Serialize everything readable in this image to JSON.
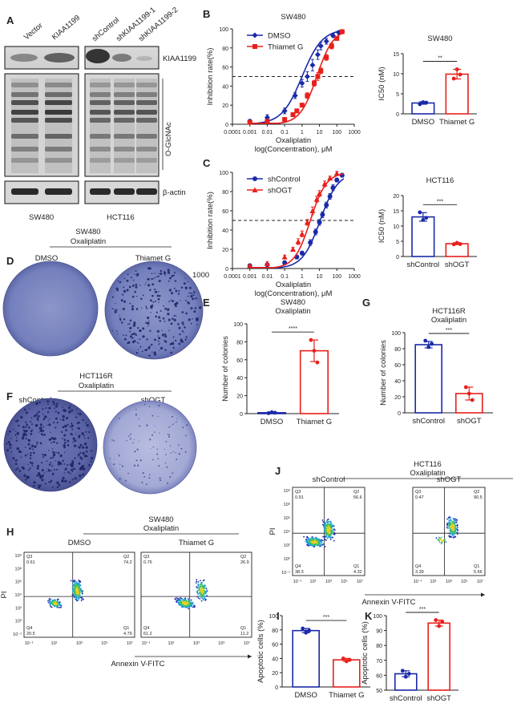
{
  "colors": {
    "blue": "#1a2aa8",
    "red": "#e8201c",
    "gray": "#555555"
  },
  "panel_labels": [
    "A",
    "B",
    "C",
    "D",
    "E",
    "F",
    "G",
    "H",
    "I",
    "J",
    "K"
  ],
  "panelA": {
    "lanes_left": [
      "Vector",
      "KIAA1199"
    ],
    "lanes_right": [
      "shControl",
      "shKIAA1199-1",
      "shKIAA1199-2"
    ],
    "blots": [
      "KIAA1199",
      "O-GlcNAc",
      "β-actin"
    ],
    "cells": [
      "SW480",
      "HCT116"
    ]
  },
  "panelD": {
    "title1": "SW480",
    "title2": "Oxaliplatin",
    "labels": [
      "DMSO",
      "Thiamet G"
    ],
    "aside": "1000"
  },
  "panelF": {
    "title1": "HCT116R",
    "title2": "Oxaliplatin",
    "labels": [
      "shControl",
      "shOGT"
    ]
  },
  "panelH": {
    "title1": "SW480",
    "title2": "Oxaliplatin",
    "labels": [
      "DMSO",
      "Thiamet G"
    ],
    "xaxis": "Annexin V-FITC",
    "yaxis": "PI",
    "plots": [
      {
        "q3": "Q3",
        "q3v": "0.61",
        "q2": "Q2",
        "q2v": "74.2",
        "q4": "Q4",
        "q4v": "20.5",
        "q1": "Q1",
        "q1v": "4.79"
      },
      {
        "q3": "Q3",
        "q3v": "0.76",
        "q2": "Q2",
        "q2v": "26.9",
        "q4": "Q4",
        "q4v": "61.2",
        "q1": "Q1",
        "q1v": "11.2"
      }
    ],
    "xticks": [
      "10⁻¹",
      "10¹",
      "10³",
      "10⁵",
      "10⁷"
    ],
    "yticks": [
      "10⁹",
      "10⁸",
      "10⁶",
      "10⁴",
      "10²",
      "10⁰",
      "10⁻¹"
    ]
  },
  "panelJ": {
    "title1": "HCT116",
    "title2": "Oxaliplatin",
    "labels": [
      "shControl",
      "shOGT"
    ],
    "xaxis": "Annexin V-FITC",
    "yaxis": "PI",
    "plots": [
      {
        "q3": "Q3",
        "q3v": "0.91",
        "q2": "Q2",
        "q2v": "56.6",
        "q4": "Q4",
        "q4v": "38.3",
        "q1": "Q1",
        "q1v": "4.32"
      },
      {
        "q3": "Q3",
        "q3v": "0.47",
        "q2": "Q2",
        "q2v": "90.5",
        "q4": "Q4",
        "q4v": "3.39",
        "q1": "Q1",
        "q1v": "5.66"
      }
    ],
    "xticks": [
      "10⁻¹",
      "10¹",
      "10³",
      "10⁵",
      "10⁷"
    ],
    "yticks": [
      "10⁹",
      "10⁸",
      "10⁶",
      "10⁴",
      "10²",
      "10⁰",
      "10⁻¹"
    ]
  },
  "chart_data": [
    {
      "id": "B_curve",
      "type": "line",
      "title": "SW480",
      "xlabel": "Oxaliplatin\nlog(Concentration), μM",
      "ylabel": "Inhibition rate(%)",
      "xscale": "log",
      "xlim": [
        0.0001,
        1000
      ],
      "ylim": [
        0,
        100
      ],
      "xtick_labels": [
        "0.0001",
        "0.001",
        "0.01",
        "0.1",
        "1",
        "10",
        "100",
        "1000"
      ],
      "ytick_labels": [
        "0",
        "20",
        "40",
        "60",
        "80",
        "100"
      ],
      "reference_line": 50,
      "series": [
        {
          "name": "DMSO",
          "color": "#1a2aa8",
          "marker": "diamond",
          "ec50": 1.0,
          "hill": 0.75,
          "x": [
            0.001,
            0.01,
            0.1,
            0.4,
            1,
            2,
            4,
            8,
            12,
            25,
            60,
            130,
            200
          ],
          "y": [
            3,
            7,
            14,
            30,
            43,
            50,
            62,
            73,
            82,
            87,
            93,
            96,
            97
          ],
          "err": [
            2,
            3,
            3,
            3,
            4,
            5,
            6,
            5,
            4,
            3,
            2,
            2,
            2
          ]
        },
        {
          "name": "Thiamet G",
          "color": "#e8201c",
          "marker": "square",
          "ec50": 7.0,
          "hill": 0.9,
          "x": [
            0.001,
            0.01,
            0.1,
            0.3,
            0.5,
            1,
            2,
            5,
            8,
            12,
            25,
            50,
            100,
            200
          ],
          "y": [
            2,
            3,
            5,
            10,
            14,
            20,
            30,
            43,
            50,
            56,
            70,
            82,
            90,
            97
          ],
          "err": [
            1,
            1,
            2,
            2,
            2,
            2,
            3,
            3,
            4,
            3,
            3,
            3,
            2,
            2
          ]
        }
      ]
    },
    {
      "id": "B_ic50",
      "type": "bar",
      "title": "SW480",
      "ylabel": "IC50 (nM)",
      "categories": [
        "DMSO",
        "Thiamet G"
      ],
      "values": [
        2.7,
        9.9
      ],
      "points": [
        [
          2.4,
          2.9,
          2.8
        ],
        [
          8.8,
          11.1,
          9.8
        ]
      ],
      "err": [
        0.3,
        1.2
      ],
      "ylim": [
        0,
        15
      ],
      "ytick_labels": [
        "0",
        "5",
        "10",
        "15"
      ],
      "significance": "**"
    },
    {
      "id": "C_curve",
      "type": "line",
      "title": "",
      "xlabel": "Oxaliplatin\nlog(Concentration), μM",
      "ylabel": "Inhibition rate(%)",
      "xscale": "log",
      "xlim": [
        0.0001,
        1000
      ],
      "ylim": [
        0,
        100
      ],
      "xtick_labels": [
        "0.0001",
        "0.001",
        "0.01",
        "0.1",
        "1",
        "10",
        "100",
        "1000"
      ],
      "ytick_labels": [
        "0",
        "20",
        "40",
        "60",
        "80",
        "100"
      ],
      "reference_line": 50,
      "series": [
        {
          "name": "shControl",
          "color": "#1a2aa8",
          "marker": "circle",
          "ec50": 11.0,
          "hill": 0.85,
          "x": [
            0.001,
            0.01,
            0.1,
            0.5,
            1,
            3,
            6,
            10,
            15,
            25,
            40,
            60,
            100,
            200
          ],
          "y": [
            3,
            4,
            6,
            12,
            16,
            27,
            38,
            48,
            56,
            66,
            75,
            84,
            92,
            97
          ],
          "err": [
            1,
            1,
            2,
            2,
            2,
            3,
            3,
            3,
            3,
            3,
            3,
            3,
            2,
            2
          ]
        },
        {
          "name": "shOGT",
          "color": "#e8201c",
          "marker": "triangle",
          "ec50": 3.0,
          "hill": 0.95,
          "x": [
            0.001,
            0.01,
            0.1,
            0.3,
            0.6,
            1,
            2,
            4,
            7,
            10,
            20,
            40,
            100
          ],
          "y": [
            3,
            5,
            12,
            20,
            28,
            36,
            48,
            60,
            72,
            78,
            88,
            94,
            99
          ],
          "err": [
            1,
            2,
            2,
            2,
            3,
            3,
            3,
            4,
            3,
            3,
            3,
            2,
            2
          ]
        }
      ]
    },
    {
      "id": "C_ic50",
      "type": "bar",
      "title": "HCT116",
      "ylabel": "IC50 (nM)",
      "categories": [
        "shControl",
        "shOGT"
      ],
      "values": [
        13.0,
        4.2
      ],
      "points": [
        [
          14.5,
          12.0,
          12.7
        ],
        [
          4.0,
          4.5,
          4.1
        ]
      ],
      "err": [
        1.4,
        0.3
      ],
      "ylim": [
        0,
        20
      ],
      "ytick_labels": [
        "0",
        "5",
        "10",
        "15",
        "20"
      ],
      "significance": "***"
    },
    {
      "id": "E",
      "type": "bar",
      "title": "SW480\nOxaliplatin",
      "ylabel": "Number of colonies",
      "categories": [
        "DMSO",
        "Thiamet G"
      ],
      "values": [
        1,
        70
      ],
      "points": [
        [
          0.5,
          1.5,
          1
        ],
        [
          82,
          70,
          57
        ]
      ],
      "err": [
        0.6,
        12
      ],
      "ylim": [
        0,
        100
      ],
      "ytick_labels": [
        "0",
        "20",
        "40",
        "60",
        "80",
        "100"
      ],
      "significance": "****"
    },
    {
      "id": "G",
      "type": "bar",
      "title": "HCT116R\nOxaliplatin",
      "ylabel": "Number of colonies",
      "categories": [
        "shControl",
        "shOGT"
      ],
      "values": [
        85,
        24
      ],
      "points": [
        [
          90,
          82,
          86
        ],
        [
          32,
          24,
          16
        ]
      ],
      "err": [
        4,
        8
      ],
      "ylim": [
        0,
        100
      ],
      "ytick_labels": [
        "0",
        "20",
        "40",
        "60",
        "80",
        "100"
      ],
      "significance": "***"
    },
    {
      "id": "I",
      "type": "bar",
      "title": "",
      "ylabel": "Apoptotic cells (%)",
      "categories": [
        "DMSO",
        "Thiamet G"
      ],
      "values": [
        79,
        38
      ],
      "points": [
        [
          82,
          76,
          79
        ],
        [
          40,
          36,
          38
        ]
      ],
      "err": [
        3,
        2
      ],
      "ylim": [
        0,
        100
      ],
      "ytick_labels": [
        "0",
        "20",
        "40",
        "60",
        "80",
        "100"
      ],
      "significance": "***"
    },
    {
      "id": "K",
      "type": "bar",
      "title": "",
      "ylabel": "Apoptotic cells (%)",
      "categories": [
        "shControl",
        "shOGT"
      ],
      "values": [
        61,
        95
      ],
      "points": [
        [
          63,
          59,
          61
        ],
        [
          97,
          93,
          96
        ]
      ],
      "err": [
        2,
        2
      ],
      "ylim": [
        50,
        100
      ],
      "ytick_labels": [
        "50",
        "60",
        "70",
        "80",
        "90",
        "100"
      ],
      "significance": "***"
    }
  ]
}
